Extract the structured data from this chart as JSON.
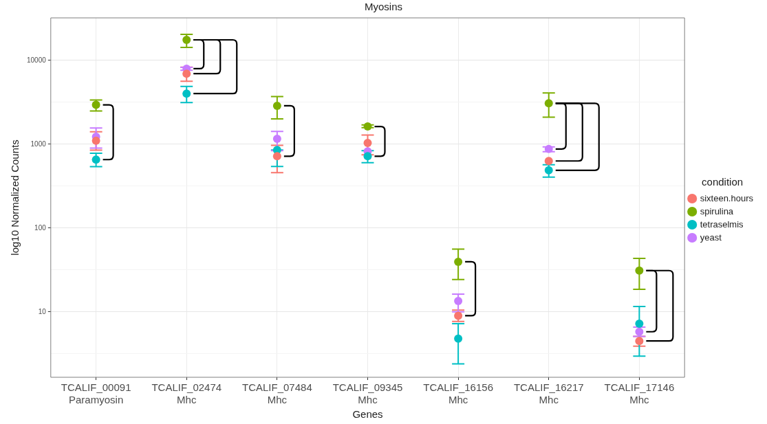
{
  "chart_data": {
    "type": "scatter",
    "title": "Myosins",
    "xlabel": "Genes",
    "ylabel": "log10 Normalized Counts",
    "legend_title": "condition",
    "categories": [
      "TCALIF_00091\nParamyosin",
      "TCALIF_02474\nMhc",
      "TCALIF_07484\nMhc",
      "TCALIF_09345\nMhc",
      "TCALIF_16156\nMhc",
      "TCALIF_16217\nMhc",
      "TCALIF_17146\nMhc"
    ],
    "series": [
      {
        "name": "sixteen.hours",
        "color": "#f8766d",
        "values": [
          1100,
          6950,
          720,
          1035,
          9.0,
          632,
          4.5
        ],
        "errors": [
          [
            850,
            1410
          ],
          [
            5650,
            8300
          ],
          [
            458,
            970
          ],
          [
            750,
            1290
          ],
          [
            7.7,
            10.5
          ],
          null,
          [
            3.9,
            5.1
          ]
        ]
      },
      {
        "name": "spirulina",
        "color": "#7cae00",
        "values": [
          2950,
          17600,
          2880,
          1630,
          39.6,
          3080,
          31.1
        ],
        "errors": [
          [
            2490,
            3370
          ],
          [
            14300,
            20500
          ],
          [
            2010,
            3700
          ],
          [
            1580,
            1700
          ],
          [
            24.3,
            56
          ],
          [
            2100,
            4090
          ],
          [
            18.6,
            43.4
          ]
        ]
      },
      {
        "name": "tetraselmis",
        "color": "#00bfc4",
        "values": [
          656,
          4020,
          855,
          720,
          4.8,
          489,
          7.25
        ],
        "errors": [
          [
            540,
            780
          ],
          [
            3140,
            4890
          ],
          [
            543,
            855
          ],
          [
            603,
            840
          ],
          [
            2.4,
            7.25
          ],
          [
            405,
            569
          ],
          [
            2.97,
            11.6
          ]
        ]
      },
      {
        "name": "yeast",
        "color": "#c77cff",
        "values": [
          1230,
          7980,
          1160,
          822,
          13.5,
          877,
          5.8
        ],
        "errors": [
          [
            900,
            1560
          ],
          [
            7630,
            8280
          ],
          [
            840,
            1420
          ],
          null,
          [
            10.0,
            16.3
          ],
          [
            815,
            930
          ],
          [
            5.1,
            6.6
          ]
        ]
      }
    ],
    "log": "y",
    "ylim": [
      1.66,
      32200
    ],
    "yticks": [
      {
        "value": 3.16,
        "label": null
      },
      10,
      {
        "value": 31.6,
        "label": null
      },
      100,
      {
        "value": 316,
        "label": null
      },
      1000,
      {
        "value": 3160,
        "label": null
      },
      10000
    ],
    "grid": true,
    "legend": "right",
    "marker": "circle"
  }
}
